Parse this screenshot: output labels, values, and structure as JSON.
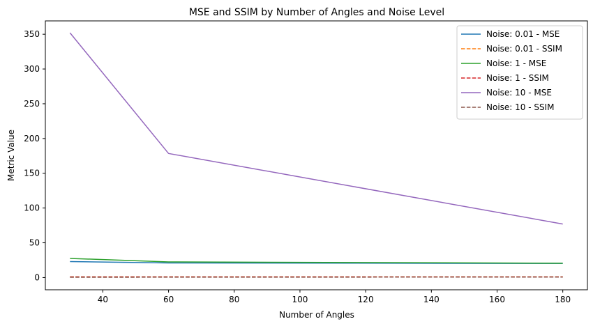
{
  "chart_data": {
    "type": "line",
    "title": "MSE and SSIM by Number of Angles and Noise Level",
    "xlabel": "Number of Angles",
    "ylabel": "Metric Value",
    "x": [
      30,
      60,
      180
    ],
    "xlim": [
      22.5,
      187.5
    ],
    "ylim": [
      -17.6,
      369.2
    ],
    "xticks": [
      40,
      60,
      80,
      100,
      120,
      140,
      160,
      180
    ],
    "yticks": [
      0,
      50,
      100,
      150,
      200,
      250,
      300,
      350
    ],
    "grid": false,
    "legend_position": "top-right",
    "series": [
      {
        "name": "Noise: 0.01 - MSE",
        "values": [
          23.0,
          21.0,
          20.3
        ],
        "color": "#1f77b4",
        "dash": "solid"
      },
      {
        "name": "Noise: 0.01 - SSIM",
        "values": [
          0.98,
          0.99,
          0.99
        ],
        "color": "#ff7f0e",
        "dash": "dashed"
      },
      {
        "name": "Noise: 1 - MSE",
        "values": [
          27.5,
          22.5,
          20.6
        ],
        "color": "#2ca02c",
        "dash": "solid"
      },
      {
        "name": "Noise: 1 - SSIM",
        "values": [
          0.95,
          0.97,
          0.98
        ],
        "color": "#d62728",
        "dash": "dashed"
      },
      {
        "name": "Noise: 10 - MSE",
        "values": [
          352.0,
          178.5,
          77.0
        ],
        "color": "#9467bd",
        "dash": "solid"
      },
      {
        "name": "Noise: 10 - SSIM",
        "values": [
          0.4,
          0.55,
          0.7
        ],
        "color": "#8c564b",
        "dash": "dashed"
      }
    ]
  }
}
